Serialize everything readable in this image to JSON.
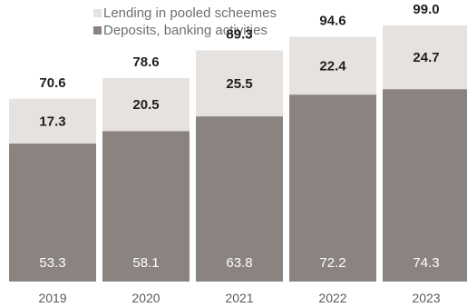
{
  "chart_data": {
    "type": "bar",
    "stacked": true,
    "categories": [
      "2019",
      "2020",
      "2021",
      "2022",
      "2023"
    ],
    "series": [
      {
        "name": "Deposits, banking activities",
        "color": "#8a8380",
        "values": [
          53.3,
          58.1,
          63.8,
          72.2,
          74.3
        ]
      },
      {
        "name": "Lending in pooled scheemes",
        "color": "#e6e2df",
        "values": [
          17.3,
          20.5,
          25.5,
          22.4,
          24.7
        ]
      }
    ],
    "totals": [
      70.6,
      78.6,
      89.3,
      94.6,
      99.0
    ],
    "total_labels": [
      "70.6",
      "78.6",
      "89.3",
      "94.6",
      "99.0"
    ],
    "title": "",
    "xlabel": "",
    "ylabel": "",
    "ylim": [
      0,
      100
    ],
    "grid": false,
    "legend": {
      "position": "top-left",
      "entries": [
        "Lending in pooled scheemes",
        "Deposits, banking activities"
      ]
    }
  }
}
